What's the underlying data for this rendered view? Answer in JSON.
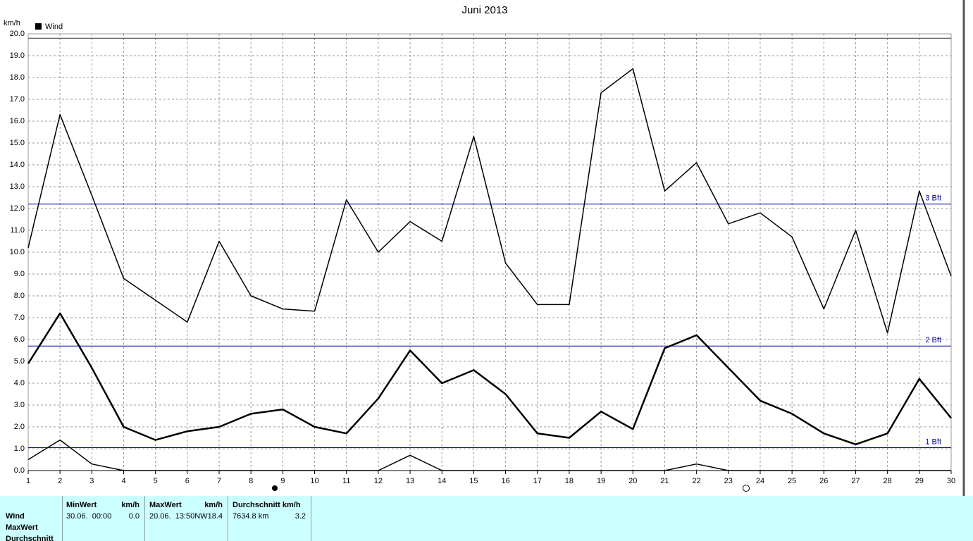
{
  "chart_data": {
    "type": "line",
    "title": "Juni 2013",
    "y_label": "km/h",
    "legend": "Wind",
    "x": [
      1,
      2,
      3,
      4,
      5,
      6,
      7,
      8,
      9,
      10,
      11,
      12,
      13,
      14,
      15,
      16,
      17,
      18,
      19,
      20,
      21,
      22,
      23,
      24,
      25,
      26,
      27,
      28,
      29,
      30
    ],
    "xlim": [
      1,
      30
    ],
    "xticks": [
      1,
      2,
      3,
      4,
      5,
      6,
      7,
      8,
      9,
      10,
      11,
      12,
      13,
      14,
      15,
      16,
      17,
      18,
      19,
      20,
      21,
      22,
      23,
      24,
      25,
      26,
      27,
      28,
      29,
      30
    ],
    "ylim": [
      0,
      20
    ],
    "yticks": [
      {
        "value": 0,
        "label": "0.0"
      },
      {
        "value": 1,
        "label": "1.0"
      },
      {
        "value": 2,
        "label": "2.0"
      },
      {
        "value": 3,
        "label": "3.0"
      },
      {
        "value": 4,
        "label": "4.0"
      },
      {
        "value": 5,
        "label": "5.0"
      },
      {
        "value": 6,
        "label": "6.0"
      },
      {
        "value": 7,
        "label": "7.0"
      },
      {
        "value": 8,
        "label": "8.0"
      },
      {
        "value": 9,
        "label": "9.0"
      },
      {
        "value": 10,
        "label": "10.0"
      },
      {
        "value": 11,
        "label": "11.0"
      },
      {
        "value": 12,
        "label": "12.0"
      },
      {
        "value": 13,
        "label": "13.0"
      },
      {
        "value": 14,
        "label": "14.0"
      },
      {
        "value": 15,
        "label": "15.0"
      },
      {
        "value": 16,
        "label": "16.0"
      },
      {
        "value": 17,
        "label": "17.0"
      },
      {
        "value": 18,
        "label": "18.0"
      },
      {
        "value": 19,
        "label": "19.0"
      },
      {
        "value": 20,
        "label": "20.0"
      }
    ],
    "grid": true,
    "series": [
      {
        "color": "#000000",
        "width": 1.5,
        "values": [
          10.2,
          16.3,
          12.6,
          8.8,
          7.8,
          6.8,
          10.5,
          8.0,
          7.4,
          7.3,
          12.4,
          10.0,
          11.4,
          10.5,
          15.3,
          9.5,
          7.6,
          7.6,
          17.3,
          18.4,
          12.8,
          14.1,
          11.3,
          11.8,
          10.7,
          7.4,
          11.0,
          6.3,
          12.8,
          8.9
        ]
      },
      {
        "color": "#000000",
        "width": 2.5,
        "values": [
          4.9,
          7.2,
          4.7,
          2.0,
          1.4,
          1.8,
          2.0,
          2.6,
          2.8,
          2.0,
          1.7,
          3.3,
          5.5,
          4.0,
          4.6,
          3.5,
          1.7,
          1.5,
          2.7,
          1.9,
          5.6,
          6.2,
          4.7,
          3.2,
          2.6,
          1.7,
          1.2,
          1.7,
          4.2,
          2.4
        ]
      },
      {
        "color": "#000000",
        "width": 1.5,
        "values": [
          0.5,
          1.4,
          0.3,
          0,
          0,
          0,
          0,
          0,
          0,
          0,
          0,
          0,
          0.7,
          0,
          0,
          0,
          0,
          0,
          0,
          0,
          0,
          0.3,
          0,
          0,
          0,
          0,
          0,
          0,
          0,
          0
        ]
      }
    ],
    "reference_lines": [
      {
        "value": 1.05,
        "label": "1 Bft",
        "color": "#0000aa"
      },
      {
        "value": 5.7,
        "label": "2 Bft",
        "color": "#0000aa"
      },
      {
        "value": 12.2,
        "label": "3 Bft",
        "color": "#0000aa"
      },
      {
        "value": 19.8,
        "color": "#333333"
      }
    ]
  },
  "table": {
    "row_labels": [
      "Wind",
      "MaxWert",
      "Durchschnitt"
    ],
    "columns": [
      {
        "header": "MinWert",
        "unit": "km/h",
        "cells": [
          "30.06.  00:00",
          "0.0"
        ]
      },
      {
        "header": "MaxWert",
        "unit": "km/h",
        "cells": [
          "20.06.  13:50NW",
          "18.4"
        ]
      },
      {
        "header": "Durchschnitt km/h",
        "cells": [
          "7634.8 km",
          "3.2"
        ]
      }
    ]
  }
}
